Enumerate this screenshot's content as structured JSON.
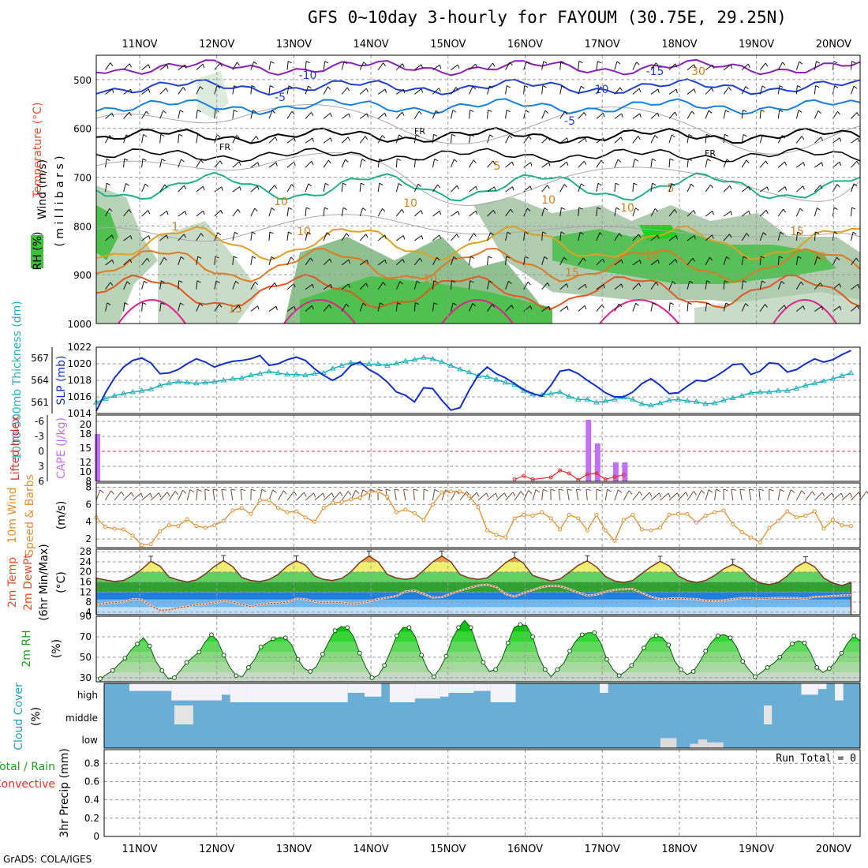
{
  "title": "GFS 0~10day 3-hourly for FAYOUM (30.75E, 29.25N)",
  "credit": "GrADS: COLA/IGES",
  "date_labels": [
    "11NOV",
    "12NOV",
    "13NOV",
    "14NOV",
    "15NOV",
    "16NOV",
    "17NOV",
    "18NOV",
    "19NOV",
    "20NOV"
  ],
  "colors": {
    "grid": "#9a9a9a",
    "slp": "#1030c8",
    "thickness": "#20b0b8",
    "cape": "#c070f0",
    "li": "#e03030",
    "wind": "#e09030",
    "temp_fill_hi": "#f0f070",
    "temp_fill_mid": "#40c040",
    "dew_fill": "#2080e0",
    "rh_green": "#20d020",
    "cloud_blue": "#6aaed6",
    "cloud_white": "#f4f2fa"
  },
  "chart_data": [
    {
      "panel": "upper-air cross section",
      "type": "contour",
      "ylabel_parts": [
        "Wind (m/s)",
        "Temperature (°C)",
        "RH (%)"
      ],
      "yunits_label": "( m i l l i b a r s )",
      "yticks": [
        500,
        600,
        700,
        800,
        900,
        1000
      ],
      "ylim": [
        450,
        1000
      ],
      "contour_labels": [
        "-15",
        "-10",
        "-10",
        "-5",
        "-5",
        "FR",
        "FR",
        "FR",
        "5",
        "5",
        "10",
        "10",
        "10",
        "10",
        "10",
        "10",
        "15",
        "15",
        "15",
        "10",
        "30",
        "30",
        "1"
      ]
    },
    {
      "panel": "SLP and thickness",
      "type": "line",
      "ylabel_left": "1000-500mb Thickness (dm)",
      "ylabel_right": "SLP (mb)",
      "yticks_thickness": [
        561,
        564,
        567
      ],
      "yticks_slp": [
        1014,
        1016,
        1018,
        1020,
        1022
      ],
      "ylim_slp": [
        1014,
        1022
      ],
      "slp": [
        1014.3,
        1016.5,
        1018.3,
        1019.6,
        1020.4,
        1020.7,
        1020.1,
        1018.8,
        1018.9,
        1019.3,
        1020.0,
        1020.6,
        1020.2,
        1019.6,
        1020.0,
        1020.3,
        1020.4,
        1020.6,
        1021.0,
        1019.8,
        1020.0,
        1020.5,
        1020.8,
        1020.4,
        1019.4,
        1018.6,
        1018.0,
        1018.6,
        1019.8,
        1020.2,
        1019.3,
        1018.7,
        1017.8,
        1016.6,
        1016.2,
        1015.4,
        1017.1,
        1017.0,
        1015.6,
        1014.4,
        1014.7,
        1016.8,
        1018.6,
        1019.6,
        1018.8,
        1018.3,
        1017.6,
        1016.9,
        1016.4,
        1016.1,
        1017.4,
        1019.1,
        1019.3,
        1018.8,
        1018.0,
        1017.3,
        1016.5,
        1016.0,
        1016.0,
        1016.6,
        1017.6,
        1018.2,
        1017.4,
        1016.4,
        1016.5,
        1017.3,
        1018.0,
        1017.9,
        1018.4,
        1019.1,
        1019.9,
        1020.0,
        1018.7,
        1019.1,
        1020.1,
        1020.0,
        1019.0,
        1019.3,
        1020.0,
        1020.6,
        1020.2,
        1020.5,
        1021.1,
        1021.6
      ],
      "thickness": [
        561.0,
        561.5,
        561.9,
        562.2,
        562.4,
        562.6,
        562.8,
        563.3,
        563.6,
        563.8,
        563.7,
        563.6,
        563.7,
        563.8,
        564.0,
        564.2,
        564.3,
        564.7,
        564.9,
        565.2,
        565.0,
        564.8,
        564.8,
        564.7,
        564.9,
        565.0,
        565.6,
        566.0,
        566.4,
        566.3,
        566.2,
        566.2,
        566.0,
        566.3,
        566.6,
        566.8,
        567.1,
        566.9,
        566.5,
        566.0,
        565.5,
        565.1,
        564.6,
        564.5,
        564.1,
        563.7,
        563.4,
        562.6,
        562.1,
        562.0,
        562.2,
        562.4,
        561.8,
        561.4,
        561.4,
        561.0,
        561.2,
        561.4,
        561.7,
        561.4,
        560.8,
        560.6,
        560.9,
        561.3,
        561.4,
        561.2,
        561.1,
        560.8,
        560.9,
        561.3,
        561.6,
        561.9,
        562.3,
        562.4,
        562.4,
        562.6,
        562.6,
        562.9,
        563.3,
        563.6,
        563.9,
        564.2,
        564.6,
        565.0
      ]
    },
    {
      "panel": "CAPE and Lifted Index",
      "type": "bar",
      "ylabel_left": "Lifted Index",
      "ylabel_right": "CAPE (J/kg)",
      "yticks_li": [
        "-6",
        "-3",
        "0",
        "3",
        "6"
      ],
      "yticks_cape": [
        8,
        10,
        12,
        15,
        18,
        20
      ],
      "cape_bars": [
        {
          "x": 0,
          "value": 18
        },
        {
          "x": 54,
          "value": 21
        },
        {
          "x": 55,
          "value": 16
        },
        {
          "x": 57,
          "value": 12
        },
        {
          "x": 58,
          "value": 12
        }
      ],
      "li_points": [
        [
          46,
          5.6
        ],
        [
          47,
          4.9
        ],
        [
          48,
          5.6
        ],
        [
          50,
          5.2
        ],
        [
          51,
          3.8
        ],
        [
          52,
          4.4
        ],
        [
          53,
          5.7
        ],
        [
          54,
          4.6
        ],
        [
          55,
          4.4
        ],
        [
          56,
          5.6
        ],
        [
          57,
          5.1
        ],
        [
          58,
          4.7
        ]
      ]
    },
    {
      "panel": "10m wind",
      "type": "line",
      "ylabel_left": "10m Wind",
      "ylabel_mid": "Speed & Barbs",
      "ylabel_unit": "(m/s)",
      "yticks": [
        2,
        4,
        6,
        8
      ],
      "ylim": [
        1,
        8.5
      ],
      "speed": [
        4.5,
        3.4,
        3.2,
        3.1,
        2.4,
        1.3,
        1.4,
        2.9,
        3.6,
        3.5,
        4.3,
        3.5,
        3.3,
        3.6,
        4.1,
        5.3,
        5.6,
        4.9,
        6.5,
        6.5,
        5.6,
        5.1,
        5.2,
        4.5,
        4.0,
        5.6,
        6.2,
        6.3,
        6.6,
        6.8,
        7.4,
        7.5,
        6.9,
        5.1,
        5.4,
        5.0,
        4.2,
        6.0,
        7.4,
        7.5,
        7.5,
        7.0,
        5.7,
        3.0,
        2.5,
        2.2,
        4.4,
        4.8,
        4.7,
        5.1,
        4.4,
        3.1,
        4.8,
        4.4,
        3.0,
        4.8,
        3.0,
        1.8,
        4.2,
        4.8,
        3.1,
        3.0,
        3.3,
        4.8,
        4.9,
        4.9,
        3.9,
        4.7,
        5.1,
        5.3,
        3.7,
        2.8,
        2.2,
        1.6,
        3.3,
        4.1,
        5.2,
        4.5,
        4.7,
        5.2,
        3.2,
        4.2,
        3.6,
        3.5
      ]
    },
    {
      "panel": "2m temperature and dewpoint",
      "type": "area",
      "ylabel_parts": [
        "2m Temp",
        "2m DewPt",
        "(6hr Min/Max)"
      ],
      "ylabel_unit": "(°C)",
      "yticks": [
        4,
        8,
        12,
        16,
        20,
        24,
        28
      ],
      "ylim": [
        3,
        29
      ],
      "temp": [
        17.5,
        16.8,
        16.2,
        16.6,
        18.5,
        21.0,
        24.2,
        22.3,
        18.0,
        16.8,
        16.0,
        16.8,
        19.2,
        22.2,
        24.5,
        22.1,
        17.8,
        16.6,
        16.2,
        17.0,
        19.0,
        22.3,
        24.4,
        22.7,
        18.4,
        17.0,
        16.6,
        17.4,
        20.0,
        23.8,
        26.3,
        24.0,
        19.0,
        17.6,
        17.0,
        17.6,
        20.6,
        24.0,
        26.3,
        24.0,
        19.0,
        17.6,
        17.0,
        17.6,
        20.4,
        23.6,
        25.8,
        23.4,
        18.6,
        17.4,
        16.4,
        17.2,
        19.8,
        22.6,
        24.4,
        22.0,
        18.2,
        16.4,
        15.8,
        16.6,
        19.4,
        22.0,
        24.2,
        22.4,
        18.4,
        16.6,
        15.8,
        16.6,
        18.6,
        21.2,
        23.0,
        21.2,
        17.6,
        15.6,
        15.0,
        15.8,
        18.4,
        22.0,
        24.0,
        22.0,
        17.6,
        15.6,
        14.6,
        15.8
      ],
      "dewpt": [
        7.0,
        7.5,
        7.8,
        8.2,
        9.2,
        9.0,
        6.5,
        4.8,
        4.9,
        5.8,
        6.2,
        6.9,
        7.2,
        7.8,
        8.6,
        8.0,
        7.0,
        6.2,
        7.0,
        7.5,
        7.6,
        8.0,
        9.4,
        9.2,
        8.2,
        7.8,
        8.0,
        7.8,
        7.3,
        7.6,
        8.3,
        9.2,
        9.8,
        10.4,
        12.2,
        12.6,
        11.2,
        9.8,
        10.0,
        11.3,
        12.6,
        13.6,
        14.6,
        14.9,
        14.0,
        11.2,
        10.2,
        11.6,
        12.8,
        14.0,
        14.5,
        14.3,
        13.2,
        11.8,
        10.6,
        11.0,
        12.1,
        12.9,
        13.1,
        13.2,
        11.6,
        10.1,
        9.2,
        9.4,
        9.5,
        9.3,
        9.2,
        8.6,
        8.4,
        8.7,
        9.2,
        9.6,
        9.6,
        9.4,
        9.5,
        9.7,
        9.6,
        9.6,
        9.4,
        10.1,
        10.2,
        10.4,
        10.6,
        10.8
      ]
    },
    {
      "panel": "2m RH",
      "type": "area",
      "ylabel_left": "2m RH",
      "ylabel_unit": "(%)",
      "yticks": [
        30,
        50,
        70,
        90
      ],
      "ylim": [
        26,
        90
      ],
      "rh": [
        29,
        33,
        37,
        43,
        49,
        57,
        63,
        69,
        61,
        46,
        37,
        29,
        30,
        37,
        45,
        50,
        55,
        65,
        72,
        66,
        52,
        40,
        32,
        31,
        40,
        48,
        60,
        64,
        68,
        69,
        69,
        62,
        48,
        39,
        36,
        41,
        53,
        65,
        76,
        80,
        79,
        70,
        54,
        40,
        30,
        32,
        42,
        56,
        71,
        79,
        79,
        70,
        52,
        38,
        31,
        39,
        51,
        68,
        79,
        86,
        79,
        61,
        45,
        36,
        38,
        48,
        64,
        79,
        82,
        81,
        70,
        50,
        38,
        31,
        38,
        44,
        56,
        66,
        72,
        74,
        74,
        64,
        48,
        38,
        32,
        36,
        42,
        50,
        59,
        68,
        71,
        69,
        62,
        46,
        38,
        33,
        36,
        45,
        56,
        65,
        71,
        72,
        69,
        60,
        46,
        38,
        31,
        35,
        40,
        44,
        50,
        57,
        63,
        66,
        64,
        54,
        40,
        35,
        39,
        45,
        54,
        64,
        71,
        66
      ]
    },
    {
      "panel": "Cloud Cover",
      "type": "heatmap",
      "ylabel_left": "Cloud Cover",
      "ylabel_unit": "(%)",
      "row_labels": [
        "high",
        "middle",
        "low"
      ]
    },
    {
      "panel": "3hr Precip",
      "type": "bar",
      "ylabel_left_1": "Total / Rain",
      "ylabel_left_2": "Convective",
      "ylabel_mid": "3hr Precip (mm)",
      "yticks": [
        "0",
        "0.2",
        "0.4",
        "0.6",
        "0.8"
      ],
      "ylim": [
        0,
        0.95
      ],
      "run_total_label": "Run Total = 0"
    }
  ]
}
